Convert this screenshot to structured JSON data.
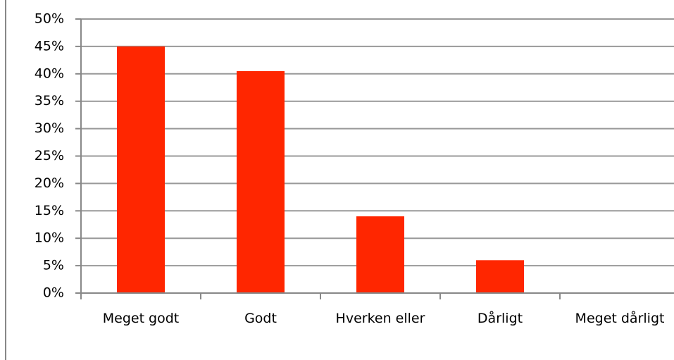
{
  "chart_data": {
    "type": "bar",
    "categories": [
      "Meget godt",
      "Godt",
      "Hverken eller",
      "Dårligt",
      "Meget dårligt"
    ],
    "values": [
      45,
      40.5,
      14,
      6,
      0
    ],
    "color": "#ff2600",
    "ylim": [
      0,
      50
    ],
    "yticks": [
      {
        "value": 0,
        "label": "0%"
      },
      {
        "value": 5,
        "label": "5%"
      },
      {
        "value": 10,
        "label": "10%"
      },
      {
        "value": 15,
        "label": "15%"
      },
      {
        "value": 20,
        "label": "20%"
      },
      {
        "value": 25,
        "label": "25%"
      },
      {
        "value": 30,
        "label": "30%"
      },
      {
        "value": 35,
        "label": "35%"
      },
      {
        "value": 40,
        "label": "40%"
      },
      {
        "value": 45,
        "label": "45%"
      },
      {
        "value": 50,
        "label": "50%"
      }
    ],
    "grid": true
  }
}
